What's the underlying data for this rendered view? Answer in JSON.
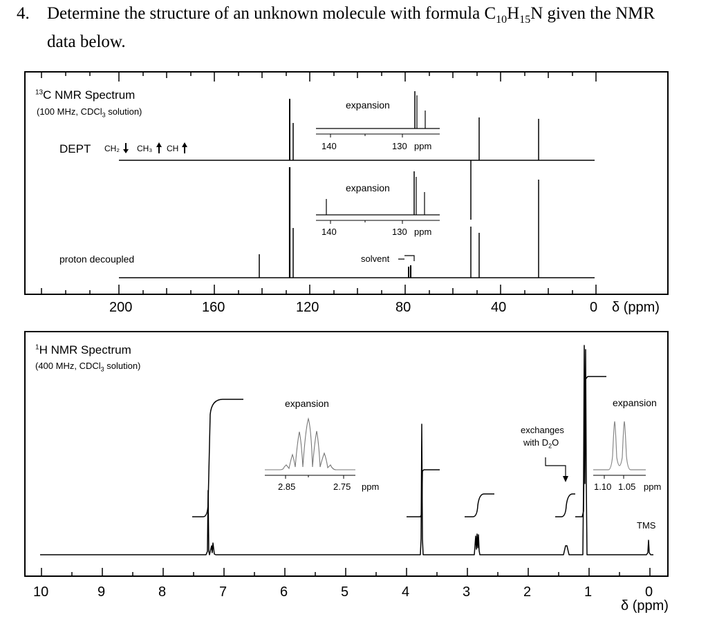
{
  "question": {
    "number": "4.",
    "line1": "Determine the structure of an unknown molecule with formula C",
    "sub1": "10",
    "mid": "H",
    "sub2": "15",
    "end": "N given the NMR",
    "line2": "data below."
  },
  "c13": {
    "title_sup": "13",
    "title": "C NMR Spectrum",
    "conditions_pre": "(100 MHz, CDCl",
    "conditions_sub": "3",
    "conditions_post": " solution)",
    "dept_label": "DEPT",
    "dept_key": [
      {
        "group": "CH₂",
        "arrow": "down"
      },
      {
        "group": "CH₃",
        "arrow": "up"
      },
      {
        "group": "CH",
        "arrow": "up"
      }
    ],
    "decoupled_label": "proton decoupled",
    "solvent_label": "solvent",
    "expansion_label": "expansion",
    "expansion_ticks": [
      "140",
      "130"
    ],
    "expansion_unit": "ppm",
    "axis_labels": [
      "200",
      "160",
      "120",
      "80",
      "40",
      "0"
    ],
    "axis_unit": "δ (ppm)",
    "peaks_ppm": [
      143.5,
      128.4,
      127.9,
      126.8,
      53.9,
      51.9,
      22.9
    ],
    "solvent_ppm": 77.0
  },
  "h1": {
    "title_sup": "1",
    "title": "H NMR Spectrum",
    "conditions_pre": "(400 MHz, CDCl",
    "conditions_sub": "3",
    "conditions_post": " solution)",
    "expansion_label": "expansion",
    "expansion_ticks_a": [
      "2.85",
      "2.75"
    ],
    "expansion_ticks_b": [
      "1.10",
      "1.05"
    ],
    "expansion_unit": "ppm",
    "exchange_label_1": "exchanges",
    "exchange_label_2_pre": "with D",
    "exchange_label_2_sub": "2",
    "exchange_label_2_post": "O",
    "tms_label": "TMS",
    "axis_labels": [
      "10",
      "9",
      "8",
      "7",
      "6",
      "5",
      "4",
      "3",
      "2",
      "1",
      "0"
    ],
    "axis_unit": "δ (ppm)",
    "signals_ppm": [
      7.28,
      3.75,
      2.82,
      1.35,
      1.07,
      0.0
    ],
    "integrations": [
      5,
      2,
      1,
      1,
      6
    ]
  }
}
